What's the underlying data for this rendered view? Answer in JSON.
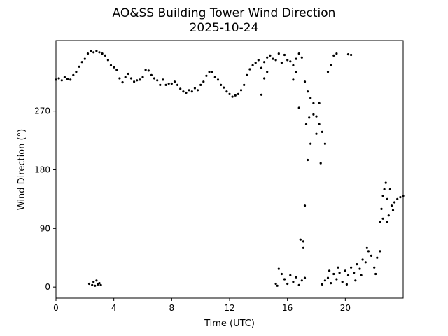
{
  "chart_data": {
    "type": "scatter",
    "title": "AO&SS Building Tower Wind Direction",
    "subtitle": "2025-10-24",
    "xlabel": "Time (UTC)",
    "ylabel": "Wind Direction (°)",
    "xlim": [
      0,
      24
    ],
    "ylim": [
      -17,
      378
    ],
    "xticks": [
      0,
      4,
      8,
      12,
      16,
      20
    ],
    "xtick_labels": [
      "0",
      "4",
      "8",
      "12",
      "16",
      "20"
    ],
    "yticks": [
      0,
      90,
      180,
      270
    ],
    "ytick_labels": [
      "0",
      "90",
      "180",
      "270"
    ],
    "grid": false,
    "marker_color": "#000000",
    "series": [
      {
        "points": [
          [
            0.0,
            318
          ],
          [
            0.2,
            320
          ],
          [
            0.4,
            317
          ],
          [
            0.6,
            322
          ],
          [
            0.8,
            319
          ],
          [
            1.0,
            318
          ],
          [
            1.2,
            325
          ],
          [
            1.4,
            330
          ],
          [
            1.6,
            338
          ],
          [
            1.8,
            345
          ],
          [
            2.0,
            350
          ],
          [
            2.2,
            358
          ],
          [
            2.4,
            362
          ],
          [
            2.6,
            360
          ],
          [
            2.8,
            362
          ],
          [
            3.0,
            360
          ],
          [
            3.2,
            358
          ],
          [
            3.4,
            355
          ],
          [
            3.6,
            348
          ],
          [
            3.8,
            340
          ],
          [
            4.0,
            337
          ],
          [
            4.2,
            333
          ],
          [
            4.4,
            320
          ],
          [
            4.6,
            314
          ],
          [
            4.8,
            322
          ],
          [
            5.0,
            327
          ],
          [
            5.2,
            320
          ],
          [
            5.4,
            315
          ],
          [
            5.6,
            317
          ],
          [
            5.8,
            318
          ],
          [
            6.0,
            322
          ],
          [
            6.2,
            333
          ],
          [
            6.4,
            332
          ],
          [
            6.6,
            325
          ],
          [
            6.8,
            320
          ],
          [
            7.0,
            317
          ],
          [
            7.2,
            310
          ],
          [
            7.4,
            318
          ],
          [
            7.6,
            310
          ],
          [
            7.8,
            312
          ],
          [
            8.0,
            312
          ],
          [
            8.2,
            315
          ],
          [
            8.4,
            310
          ],
          [
            8.6,
            304
          ],
          [
            8.8,
            300
          ],
          [
            9.0,
            298
          ],
          [
            9.2,
            302
          ],
          [
            9.4,
            300
          ],
          [
            9.6,
            305
          ],
          [
            9.8,
            302
          ],
          [
            10.0,
            310
          ],
          [
            10.2,
            315
          ],
          [
            10.4,
            324
          ],
          [
            10.6,
            330
          ],
          [
            10.8,
            330
          ],
          [
            11.0,
            322
          ],
          [
            11.2,
            318
          ],
          [
            11.4,
            310
          ],
          [
            11.6,
            306
          ],
          [
            11.8,
            300
          ],
          [
            12.0,
            296
          ],
          [
            12.2,
            292
          ],
          [
            12.4,
            294
          ],
          [
            12.6,
            296
          ],
          [
            12.8,
            302
          ],
          [
            13.0,
            310
          ],
          [
            13.2,
            325
          ],
          [
            13.4,
            334
          ],
          [
            13.6,
            340
          ],
          [
            13.8,
            344
          ],
          [
            14.0,
            348
          ],
          [
            14.2,
            336
          ],
          [
            14.4,
            345
          ],
          [
            14.6,
            352
          ],
          [
            14.8,
            355
          ],
          [
            15.0,
            350
          ],
          [
            15.2,
            348
          ],
          [
            15.4,
            358
          ],
          [
            15.6,
            344
          ],
          [
            15.8,
            356
          ],
          [
            16.0,
            348
          ],
          [
            16.2,
            346
          ],
          [
            16.4,
            340
          ],
          [
            16.6,
            350
          ],
          [
            16.8,
            358
          ],
          [
            17.0,
            352
          ],
          [
            17.2,
            315
          ],
          [
            17.4,
            300
          ],
          [
            17.6,
            290
          ],
          [
            17.8,
            282
          ],
          [
            18.0,
            262
          ],
          [
            18.2,
            250
          ],
          [
            18.4,
            238
          ],
          [
            18.6,
            220
          ],
          [
            18.8,
            330
          ],
          [
            19.0,
            340
          ],
          [
            19.2,
            355
          ],
          [
            19.4,
            358
          ],
          [
            20.2,
            357
          ],
          [
            20.4,
            356
          ],
          [
            14.4,
            320
          ],
          [
            14.2,
            295
          ],
          [
            14.6,
            330
          ],
          [
            16.6,
            330
          ],
          [
            16.4,
            318
          ],
          [
            16.8,
            275
          ],
          [
            17.3,
            250
          ],
          [
            17.5,
            260
          ],
          [
            17.6,
            220
          ],
          [
            17.4,
            195
          ],
          [
            17.8,
            265
          ],
          [
            18.0,
            235
          ],
          [
            18.2,
            282
          ],
          [
            18.3,
            190
          ],
          [
            17.2,
            125
          ],
          [
            16.9,
            73
          ],
          [
            17.1,
            70
          ],
          [
            17.1,
            60
          ],
          [
            2.3,
            5
          ],
          [
            2.5,
            3
          ],
          [
            2.6,
            8
          ],
          [
            2.7,
            2
          ],
          [
            2.8,
            10
          ],
          [
            2.9,
            4
          ],
          [
            3.0,
            6
          ],
          [
            3.1,
            3
          ],
          [
            15.2,
            5
          ],
          [
            15.3,
            2
          ],
          [
            15.4,
            28
          ],
          [
            15.6,
            20
          ],
          [
            15.8,
            12
          ],
          [
            16.0,
            5
          ],
          [
            16.2,
            18
          ],
          [
            16.4,
            8
          ],
          [
            16.6,
            15
          ],
          [
            16.8,
            3
          ],
          [
            17.0,
            10
          ],
          [
            17.2,
            14
          ],
          [
            18.4,
            4
          ],
          [
            18.6,
            10
          ],
          [
            18.8,
            14
          ],
          [
            19.0,
            6
          ],
          [
            19.2,
            20
          ],
          [
            19.4,
            12
          ],
          [
            19.6,
            22
          ],
          [
            19.8,
            8
          ],
          [
            20.0,
            25
          ],
          [
            20.2,
            18
          ],
          [
            20.4,
            30
          ],
          [
            20.6,
            22
          ],
          [
            20.8,
            35
          ],
          [
            21.0,
            28
          ],
          [
            21.2,
            42
          ],
          [
            21.4,
            38
          ],
          [
            21.6,
            55
          ],
          [
            21.8,
            48
          ],
          [
            22.0,
            30
          ],
          [
            22.2,
            45
          ],
          [
            22.4,
            55
          ],
          [
            20.1,
            4
          ],
          [
            21.5,
            60
          ],
          [
            22.1,
            20
          ],
          [
            20.7,
            10
          ],
          [
            19.5,
            30
          ],
          [
            21.1,
            18
          ],
          [
            18.9,
            25
          ],
          [
            22.4,
            100
          ],
          [
            22.5,
            120
          ],
          [
            22.6,
            140
          ],
          [
            22.7,
            150
          ],
          [
            22.8,
            160
          ],
          [
            22.9,
            135
          ],
          [
            23.0,
            110
          ],
          [
            23.2,
            125
          ],
          [
            23.4,
            130
          ],
          [
            23.6,
            135
          ],
          [
            23.8,
            138
          ],
          [
            24.0,
            140
          ],
          [
            22.6,
            105
          ],
          [
            22.9,
            100
          ],
          [
            23.1,
            150
          ],
          [
            23.3,
            118
          ]
        ]
      }
    ]
  }
}
